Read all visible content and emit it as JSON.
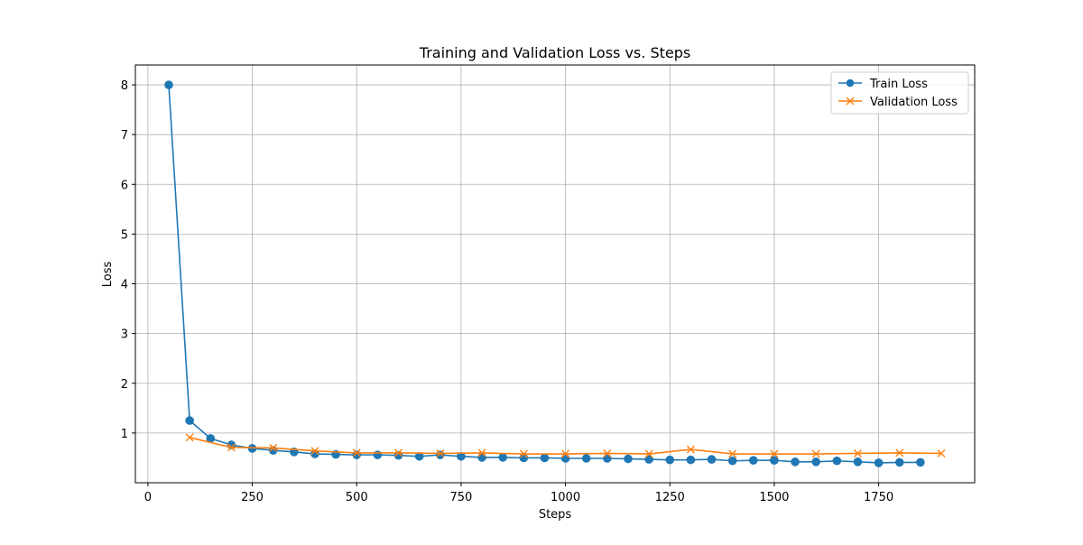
{
  "chart_data": {
    "type": "line",
    "title": "Training and Validation Loss vs. Steps",
    "xlabel": "Steps",
    "ylabel": "Loss",
    "xlim": [
      -30,
      1980
    ],
    "ylim": [
      0.0,
      8.4
    ],
    "xticks": [
      0,
      250,
      500,
      750,
      1000,
      1250,
      1500,
      1750
    ],
    "yticks": [
      1,
      2,
      3,
      4,
      5,
      6,
      7,
      8
    ],
    "grid": true,
    "legend_position": "top-right",
    "series": [
      {
        "name": "Train Loss",
        "color": "#1f77b4",
        "marker": "circle",
        "x": [
          50,
          100,
          150,
          200,
          250,
          300,
          350,
          400,
          450,
          500,
          550,
          600,
          650,
          700,
          750,
          800,
          850,
          900,
          950,
          1000,
          1050,
          1100,
          1150,
          1200,
          1250,
          1300,
          1350,
          1400,
          1450,
          1500,
          1550,
          1600,
          1650,
          1700,
          1750,
          1800,
          1850
        ],
        "y": [
          8.0,
          1.25,
          0.89,
          0.76,
          0.69,
          0.65,
          0.62,
          0.58,
          0.57,
          0.56,
          0.56,
          0.55,
          0.53,
          0.56,
          0.53,
          0.51,
          0.51,
          0.5,
          0.5,
          0.49,
          0.49,
          0.49,
          0.48,
          0.47,
          0.46,
          0.46,
          0.47,
          0.44,
          0.45,
          0.45,
          0.42,
          0.42,
          0.44,
          0.42,
          0.4,
          0.41,
          0.41
        ]
      },
      {
        "name": "Validation Loss",
        "color": "#ff7f0e",
        "marker": "x",
        "x": [
          100,
          200,
          300,
          400,
          500,
          600,
          700,
          800,
          900,
          1000,
          1100,
          1200,
          1300,
          1400,
          1500,
          1600,
          1700,
          1800,
          1900
        ],
        "y": [
          0.91,
          0.71,
          0.7,
          0.64,
          0.6,
          0.6,
          0.59,
          0.6,
          0.58,
          0.58,
          0.59,
          0.58,
          0.67,
          0.58,
          0.58,
          0.58,
          0.59,
          0.6,
          0.59
        ]
      }
    ]
  }
}
